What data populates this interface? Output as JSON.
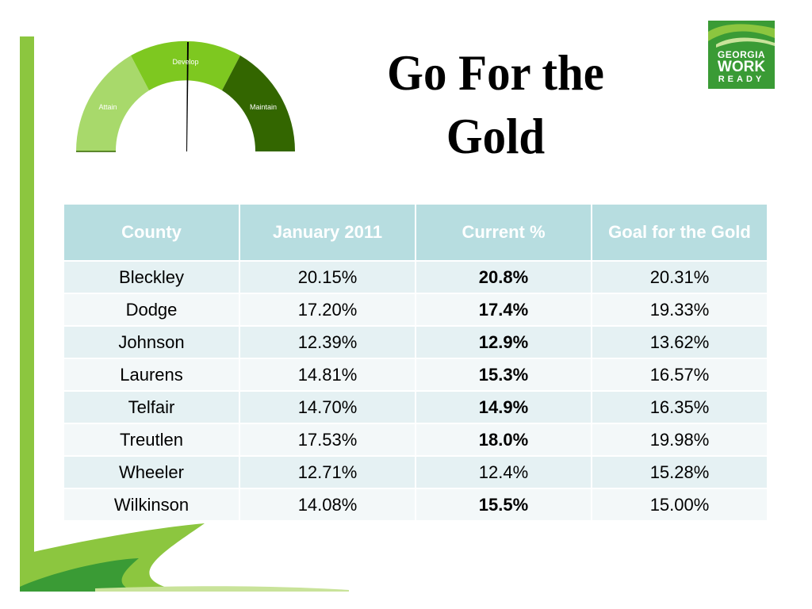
{
  "slide": {
    "title_line1": "Go For the",
    "title_line2": "Gold"
  },
  "gauge": {
    "labels": {
      "attain": "Attain",
      "develop": "Develop",
      "maintain": "Maintain"
    },
    "colors": {
      "attain": "#a8d96b",
      "develop": "#7ec820",
      "maintain": "#336600",
      "needle": "#000000"
    }
  },
  "logo": {
    "line1": "GEORGIA",
    "line2": "WORK",
    "line3": "READY",
    "color": "#3a9b35"
  },
  "table": {
    "headers": [
      "County",
      "January 2011",
      "Current %",
      "Goal for the Gold"
    ],
    "rows": [
      {
        "county": "Bleckley",
        "jan2011": "20.15%",
        "current": "20.8%",
        "current_bold": true,
        "goal": "20.31%"
      },
      {
        "county": "Dodge",
        "jan2011": "17.20%",
        "current": "17.4%",
        "current_bold": true,
        "goal": "19.33%"
      },
      {
        "county": "Johnson",
        "jan2011": "12.39%",
        "current": "12.9%",
        "current_bold": true,
        "goal": "13.62%"
      },
      {
        "county": "Laurens",
        "jan2011": "14.81%",
        "current": "15.3%",
        "current_bold": true,
        "goal": "16.57%"
      },
      {
        "county": "Telfair",
        "jan2011": "14.70%",
        "current": "14.9%",
        "current_bold": true,
        "goal": "16.35%"
      },
      {
        "county": "Treutlen",
        "jan2011": "17.53%",
        "current": "18.0%",
        "current_bold": true,
        "goal": "19.98%"
      },
      {
        "county": "Wheeler",
        "jan2011": "12.71%",
        "current": "12.4%",
        "current_bold": false,
        "goal": "15.28%"
      },
      {
        "county": "Wilkinson",
        "jan2011": "14.08%",
        "current": "15.5%",
        "current_bold": true,
        "goal": "15.00%"
      }
    ],
    "header_color": "#b7dde0",
    "row_colors": [
      "#e5f1f3",
      "#f3f8f9"
    ]
  },
  "decor": {
    "accent_green": "#8cc63f",
    "dark_green": "#3a9b35"
  }
}
